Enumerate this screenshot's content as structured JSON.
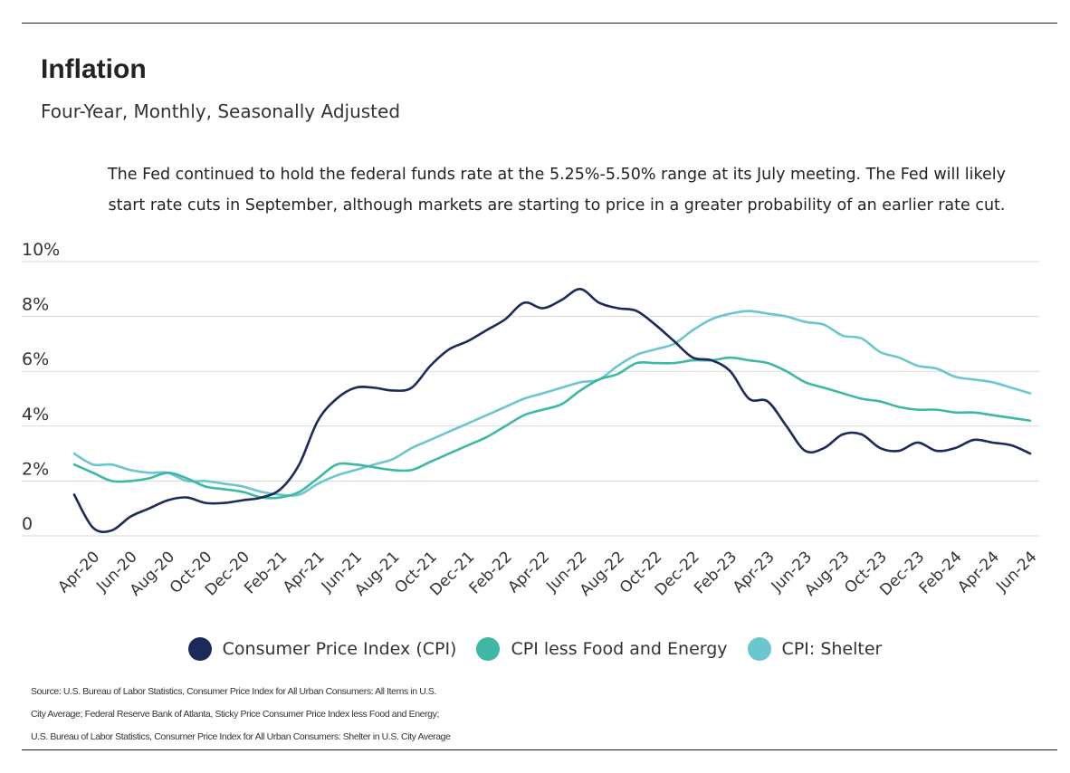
{
  "title": "Inflation",
  "subtitle": "Four-Year, Monthly, Seasonally Adjusted",
  "annotation": "The Fed continued to hold the federal funds rate at the 5.25%-5.50% range at its July meeting. The Fed will likely start rate cuts in September, although markets are starting to price in a greater probability of an earlier rate cut.",
  "source_lines": [
    "Source:  U.S. Bureau of Labor Statistics, Consumer Price Index for All Urban Consumers: All Items in U.S.",
    "City Average; Federal Reserve Bank of Atlanta, Sticky Price Consumer Price Index less Food and Energy;",
    "U.S. Bureau of Labor Statistics, Consumer Price Index for All Urban Consumers: Shelter in U.S. City Average"
  ],
  "chart_data": {
    "type": "line",
    "title": "Inflation",
    "subtitle": "Four-Year, Monthly, Seasonally Adjusted",
    "ylim": [
      0,
      10
    ],
    "y_ticks": [
      0,
      2,
      4,
      6,
      8,
      10
    ],
    "y_tick_labels": [
      "0",
      "2%",
      "4%",
      "6%",
      "8%",
      "10%"
    ],
    "grid": "horizontal",
    "legend_position": "bottom-center",
    "x": [
      "Mar-20",
      "Apr-20",
      "May-20",
      "Jun-20",
      "Jul-20",
      "Aug-20",
      "Sep-20",
      "Oct-20",
      "Nov-20",
      "Dec-20",
      "Jan-21",
      "Feb-21",
      "Mar-21",
      "Apr-21",
      "May-21",
      "Jun-21",
      "Jul-21",
      "Aug-21",
      "Sep-21",
      "Oct-21",
      "Nov-21",
      "Dec-21",
      "Jan-22",
      "Feb-22",
      "Mar-22",
      "Apr-22",
      "May-22",
      "Jun-22",
      "Jul-22",
      "Aug-22",
      "Sep-22",
      "Oct-22",
      "Nov-22",
      "Dec-22",
      "Jan-23",
      "Feb-23",
      "Mar-23",
      "Apr-23",
      "May-23",
      "Jun-23",
      "Jul-23",
      "Aug-23",
      "Sep-23",
      "Oct-23",
      "Nov-23",
      "Dec-23",
      "Jan-24",
      "Feb-24",
      "Mar-24",
      "Apr-24",
      "May-24",
      "Jun-24"
    ],
    "x_tick_labels": [
      "Apr-20",
      "Jun-20",
      "Aug-20",
      "Oct-20",
      "Dec-20",
      "Feb-21",
      "Apr-21",
      "Jun-21",
      "Aug-21",
      "Oct-21",
      "Dec-21",
      "Feb-22",
      "Apr-22",
      "Jun-22",
      "Aug-22",
      "Oct-22",
      "Dec-22",
      "Feb-23",
      "Apr-23",
      "Jun-23",
      "Aug-23",
      "Oct-23",
      "Dec-23",
      "Feb-24",
      "Apr-24",
      "Jun-24"
    ],
    "series": [
      {
        "name": "Consumer Price Index (CPI)",
        "color": "#1c2a5a",
        "values": [
          1.5,
          0.3,
          0.2,
          0.7,
          1.0,
          1.3,
          1.4,
          1.2,
          1.2,
          1.3,
          1.4,
          1.7,
          2.6,
          4.2,
          5.0,
          5.4,
          5.4,
          5.3,
          5.4,
          6.2,
          6.8,
          7.1,
          7.5,
          7.9,
          8.5,
          8.3,
          8.6,
          9.0,
          8.5,
          8.3,
          8.2,
          7.7,
          7.1,
          6.5,
          6.4,
          6.0,
          5.0,
          4.9,
          4.0,
          3.1,
          3.2,
          3.7,
          3.7,
          3.2,
          3.1,
          3.4,
          3.1,
          3.2,
          3.5,
          3.4,
          3.3,
          3.0
        ]
      },
      {
        "name": "CPI less Food and Energy",
        "color": "#3db8a4",
        "values": [
          2.6,
          2.3,
          2.0,
          2.0,
          2.1,
          2.3,
          2.1,
          1.8,
          1.7,
          1.6,
          1.4,
          1.4,
          1.6,
          2.1,
          2.6,
          2.6,
          2.5,
          2.4,
          2.4,
          2.7,
          3.0,
          3.3,
          3.6,
          4.0,
          4.4,
          4.6,
          4.8,
          5.3,
          5.7,
          5.9,
          6.3,
          6.3,
          6.3,
          6.4,
          6.4,
          6.5,
          6.4,
          6.3,
          6.0,
          5.6,
          5.4,
          5.2,
          5.0,
          4.9,
          4.7,
          4.6,
          4.6,
          4.5,
          4.5,
          4.4,
          4.3,
          4.2
        ]
      },
      {
        "name": "CPI: Shelter",
        "color": "#6cc6cf",
        "values": [
          3.0,
          2.6,
          2.6,
          2.4,
          2.3,
          2.3,
          2.0,
          2.0,
          1.9,
          1.8,
          1.6,
          1.5,
          1.5,
          1.9,
          2.2,
          2.4,
          2.6,
          2.8,
          3.2,
          3.5,
          3.8,
          4.1,
          4.4,
          4.7,
          5.0,
          5.2,
          5.4,
          5.6,
          5.7,
          6.2,
          6.6,
          6.8,
          7.0,
          7.5,
          7.9,
          8.1,
          8.2,
          8.1,
          8.0,
          7.8,
          7.7,
          7.3,
          7.2,
          6.7,
          6.5,
          6.2,
          6.1,
          5.8,
          5.7,
          5.6,
          5.4,
          5.2
        ]
      }
    ]
  }
}
